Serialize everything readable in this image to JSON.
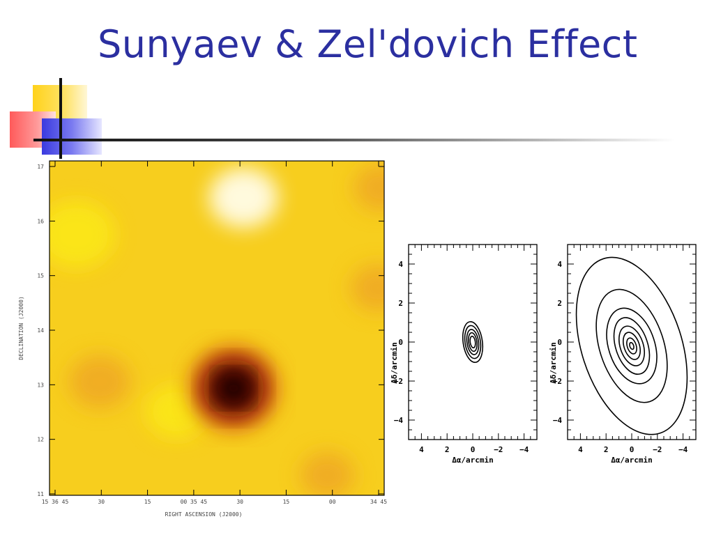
{
  "slide": {
    "title": "Sunyaev & Zel'dovich Effect"
  },
  "chart_data": [
    {
      "type": "heatmap",
      "title": "",
      "xlabel": "RIGHT ASCENSION (J2000)",
      "ylabel": "DECLINATION (J2000)",
      "x_tick_labels": [
        "15 36 45",
        "30",
        "15",
        "00 35 45",
        "30",
        "15",
        "00",
        "34 45"
      ],
      "y_tick_labels": [
        "11",
        "12",
        "13",
        "14",
        "15",
        "16",
        "17"
      ],
      "grid": false,
      "colormap": [
        "#fbe81a",
        "#f7ce1e",
        "#efaa22",
        "#d66412",
        "#6a0a00",
        "#1a0000"
      ],
      "features": [
        {
          "label": "decrement",
          "x": 0.55,
          "y": 0.32,
          "value": -1.0,
          "size": 0.07
        },
        {
          "label": "bright",
          "x": 0.58,
          "y": 0.89,
          "value": 0.5,
          "size": 0.09
        },
        {
          "label": "bright",
          "x": 0.08,
          "y": 0.78,
          "value": 0.25,
          "size": 0.1
        },
        {
          "label": "bright",
          "x": 0.38,
          "y": 0.25,
          "value": 0.2,
          "size": 0.08
        },
        {
          "label": "orange",
          "x": 0.83,
          "y": 0.06,
          "value": -0.35,
          "size": 0.07
        },
        {
          "label": "orange",
          "x": 0.15,
          "y": 0.34,
          "value": -0.25,
          "size": 0.08
        },
        {
          "label": "orange",
          "x": 0.98,
          "y": 0.62,
          "value": -0.3,
          "size": 0.07
        },
        {
          "label": "orange",
          "x": 0.99,
          "y": 0.92,
          "value": -0.3,
          "size": 0.07
        }
      ]
    },
    {
      "type": "contour",
      "xlabel": "Δα/arcmin",
      "ylabel": "Δδ/arcmin",
      "x_ticks": [
        4,
        2,
        0,
        -2,
        -4
      ],
      "y_ticks": [
        -4,
        -2,
        0,
        2,
        4
      ],
      "xlim": [
        5,
        -5
      ],
      "ylim": [
        -5,
        5
      ],
      "center": [
        0,
        0
      ],
      "contours": [
        {
          "rx": 0.75,
          "ry": 1.05
        },
        {
          "rx": 0.6,
          "ry": 0.85
        },
        {
          "rx": 0.45,
          "ry": 0.65
        },
        {
          "rx": 0.32,
          "ry": 0.48
        },
        {
          "rx": 0.2,
          "ry": 0.3
        }
      ],
      "rotation_deg": 8
    },
    {
      "type": "contour",
      "xlabel": "Δα/arcmin",
      "ylabel": "Δδ/arcmin",
      "x_ticks": [
        4,
        2,
        0,
        -2,
        -4
      ],
      "y_ticks": [
        -4,
        -2,
        0,
        2,
        4
      ],
      "xlim": [
        5,
        -5
      ],
      "ylim": [
        -5,
        5
      ],
      "center": [
        0,
        -0.2
      ],
      "contours": [
        {
          "rx": 3.9,
          "ry": 4.7
        },
        {
          "rx": 2.5,
          "ry": 3.0
        },
        {
          "rx": 1.8,
          "ry": 2.0
        },
        {
          "rx": 1.25,
          "ry": 1.5
        },
        {
          "rx": 0.9,
          "ry": 1.05
        },
        {
          "rx": 0.6,
          "ry": 0.72
        },
        {
          "rx": 0.35,
          "ry": 0.42
        },
        {
          "rx": 0.15,
          "ry": 0.18
        }
      ],
      "rotation_deg": 18
    }
  ]
}
